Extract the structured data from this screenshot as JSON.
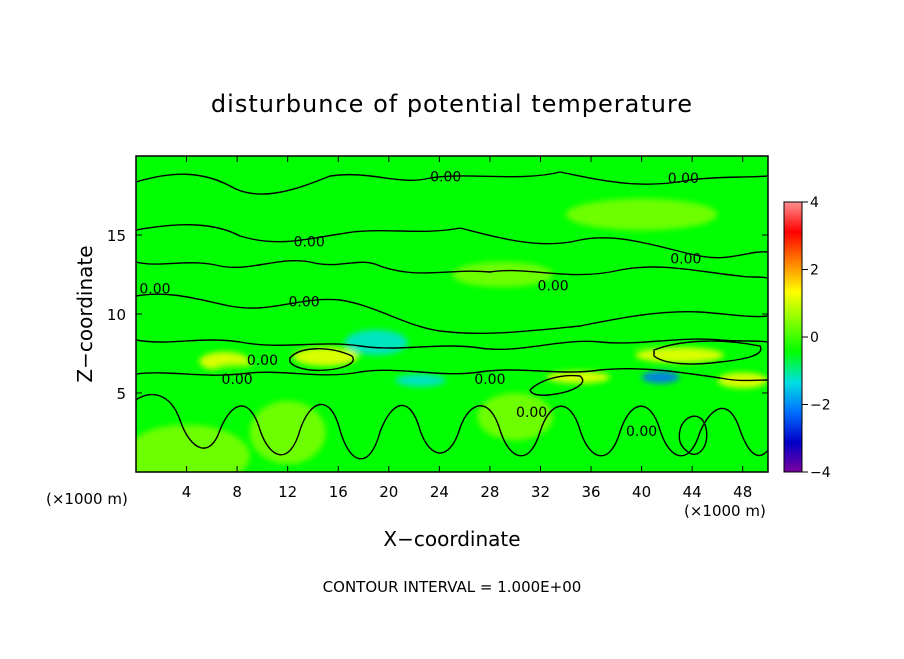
{
  "chart_data": {
    "type": "heatmap",
    "title": "disturbunce of potential temperature",
    "xlabel": "X−coordinate",
    "ylabel": "Z−coordinate",
    "x_unit": "(×1000 m)",
    "y_unit": "(×1000 m)",
    "xlim": [
      0,
      50
    ],
    "ylim": [
      0,
      20
    ],
    "xticks": [
      4,
      8,
      12,
      16,
      20,
      24,
      28,
      32,
      36,
      40,
      44,
      48
    ],
    "yticks": [
      5,
      10,
      15
    ],
    "colorbar": {
      "min": -4,
      "max": 4,
      "ticks": [
        4,
        2,
        0,
        -2,
        -4
      ],
      "tick_labels": [
        "4",
        "2",
        "0",
        "−2",
        "−4"
      ],
      "stops": [
        "#7a00a0",
        "#0000c8",
        "#0070ff",
        "#00e0e0",
        "#00ff00",
        "#80ff00",
        "#ffff00",
        "#ff8000",
        "#ff0000",
        "#ff9090"
      ]
    },
    "contour_interval_text": "CONTOUR INTERVAL = 1.000E+00",
    "contour_labels": [
      {
        "text": "0.00",
        "x": 24.5,
        "z": 18.7
      },
      {
        "text": "0.00",
        "x": 43.3,
        "z": 18.6
      },
      {
        "text": "0.00",
        "x": 13.7,
        "z": 14.6
      },
      {
        "text": "0.00",
        "x": 43.5,
        "z": 13.5
      },
      {
        "text": "0.00",
        "x": 1.5,
        "z": 11.6
      },
      {
        "text": "0.00",
        "x": 33.0,
        "z": 11.8
      },
      {
        "text": "0.00",
        "x": 13.3,
        "z": 10.8
      },
      {
        "text": "0.00",
        "x": 10.0,
        "z": 7.1
      },
      {
        "text": "0.00",
        "x": 8.0,
        "z": 5.9
      },
      {
        "text": "0.00",
        "x": 28.0,
        "z": 5.9
      },
      {
        "text": "0.00",
        "x": 31.3,
        "z": 3.8
      },
      {
        "text": "0.00",
        "x": 40.0,
        "z": 2.6
      }
    ],
    "features": [
      {
        "x": 4,
        "z": 1.0,
        "v": 0.5,
        "rx": 5,
        "rz": 2.0
      },
      {
        "x": 15,
        "z": 7.3,
        "v": 1.4,
        "rx": 2.6,
        "rz": 0.6
      },
      {
        "x": 7,
        "z": 7.0,
        "v": 1.0,
        "rx": 2.0,
        "rz": 0.6
      },
      {
        "x": 43,
        "z": 7.4,
        "v": 1.3,
        "rx": 3.5,
        "rz": 0.5
      },
      {
        "x": 48,
        "z": 5.8,
        "v": 1.5,
        "rx": 2.0,
        "rz": 0.5
      },
      {
        "x": 35,
        "z": 6.0,
        "v": 1.2,
        "rx": 2.5,
        "rz": 0.4
      },
      {
        "x": 41.5,
        "z": 6.0,
        "v": -2.2,
        "rx": 1.5,
        "rz": 0.4
      },
      {
        "x": 22.5,
        "z": 5.8,
        "v": -1.0,
        "rx": 2.0,
        "rz": 0.4
      },
      {
        "x": 19,
        "z": 8.2,
        "v": -0.9,
        "rx": 2.5,
        "rz": 0.8
      },
      {
        "x": 39,
        "z": 8.5,
        "v": -0.8,
        "rx": 2.0,
        "rz": 0.6
      },
      {
        "x": 14,
        "z": 10.5,
        "v": -0.5,
        "rx": 2.5,
        "rz": 0.7
      },
      {
        "x": 8,
        "z": 6.5,
        "v": -0.8,
        "rx": 2.0,
        "rz": 0.4
      },
      {
        "x": 1,
        "z": 8.0,
        "v": -0.5,
        "rx": 1.5,
        "rz": 0.4
      },
      {
        "x": 40,
        "z": 16.3,
        "v": 0.4,
        "rx": 6,
        "rz": 1.0
      },
      {
        "x": 12,
        "z": 2.5,
        "v": 0.4,
        "rx": 3,
        "rz": 2.0
      },
      {
        "x": 30,
        "z": 3.5,
        "v": 0.5,
        "rx": 3,
        "rz": 1.5
      },
      {
        "x": 29,
        "z": 12.5,
        "v": 0.3,
        "rx": 4,
        "rz": 0.8
      }
    ]
  }
}
